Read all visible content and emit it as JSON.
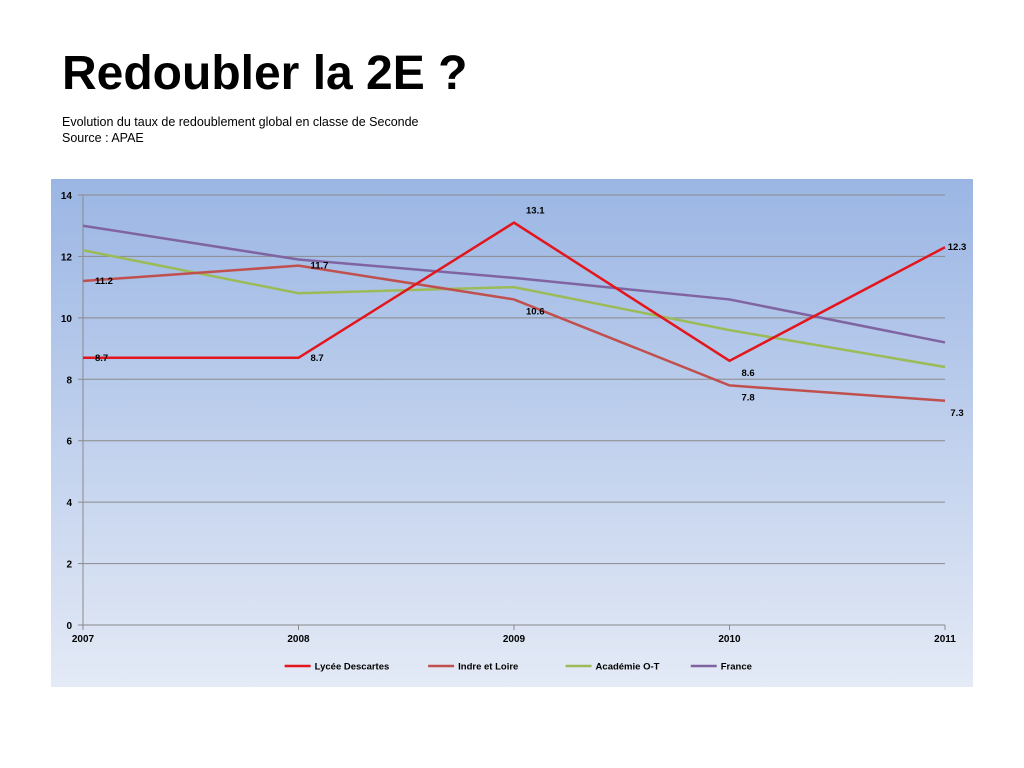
{
  "slide": {
    "title": "Redoubler la 2E ?",
    "subtitle": "Evolution du taux de redoublement global en classe de Seconde",
    "source": "Source : APAE"
  },
  "chart_data": {
    "type": "line",
    "x": [
      "2007",
      "2008",
      "2009",
      "2010",
      "2011"
    ],
    "ylim": [
      0,
      14
    ],
    "yticks": [
      0,
      2,
      4,
      6,
      8,
      10,
      12,
      14
    ],
    "grid": true,
    "legend_position": "bottom",
    "series": [
      {
        "name": "Lycée Descartes",
        "color": "#e3161d",
        "values": [
          8.7,
          8.7,
          13.1,
          8.6,
          12.3
        ],
        "labels": [
          "8.7",
          "8.7",
          "13.1",
          "8.6",
          "12.3"
        ]
      },
      {
        "name": "Indre et Loire",
        "color": "#c0504d",
        "values": [
          11.2,
          11.7,
          10.6,
          7.8,
          7.3
        ],
        "labels": [
          "11.2",
          "11.7",
          "10.6",
          "7.8",
          "7.3"
        ]
      },
      {
        "name": "Académie O-T",
        "color": "#9bbb59",
        "values": [
          12.2,
          10.8,
          11.0,
          9.6,
          8.4
        ]
      },
      {
        "name": "France",
        "color": "#8064a2",
        "values": [
          13.0,
          11.9,
          11.3,
          10.6,
          9.2
        ]
      }
    ]
  }
}
